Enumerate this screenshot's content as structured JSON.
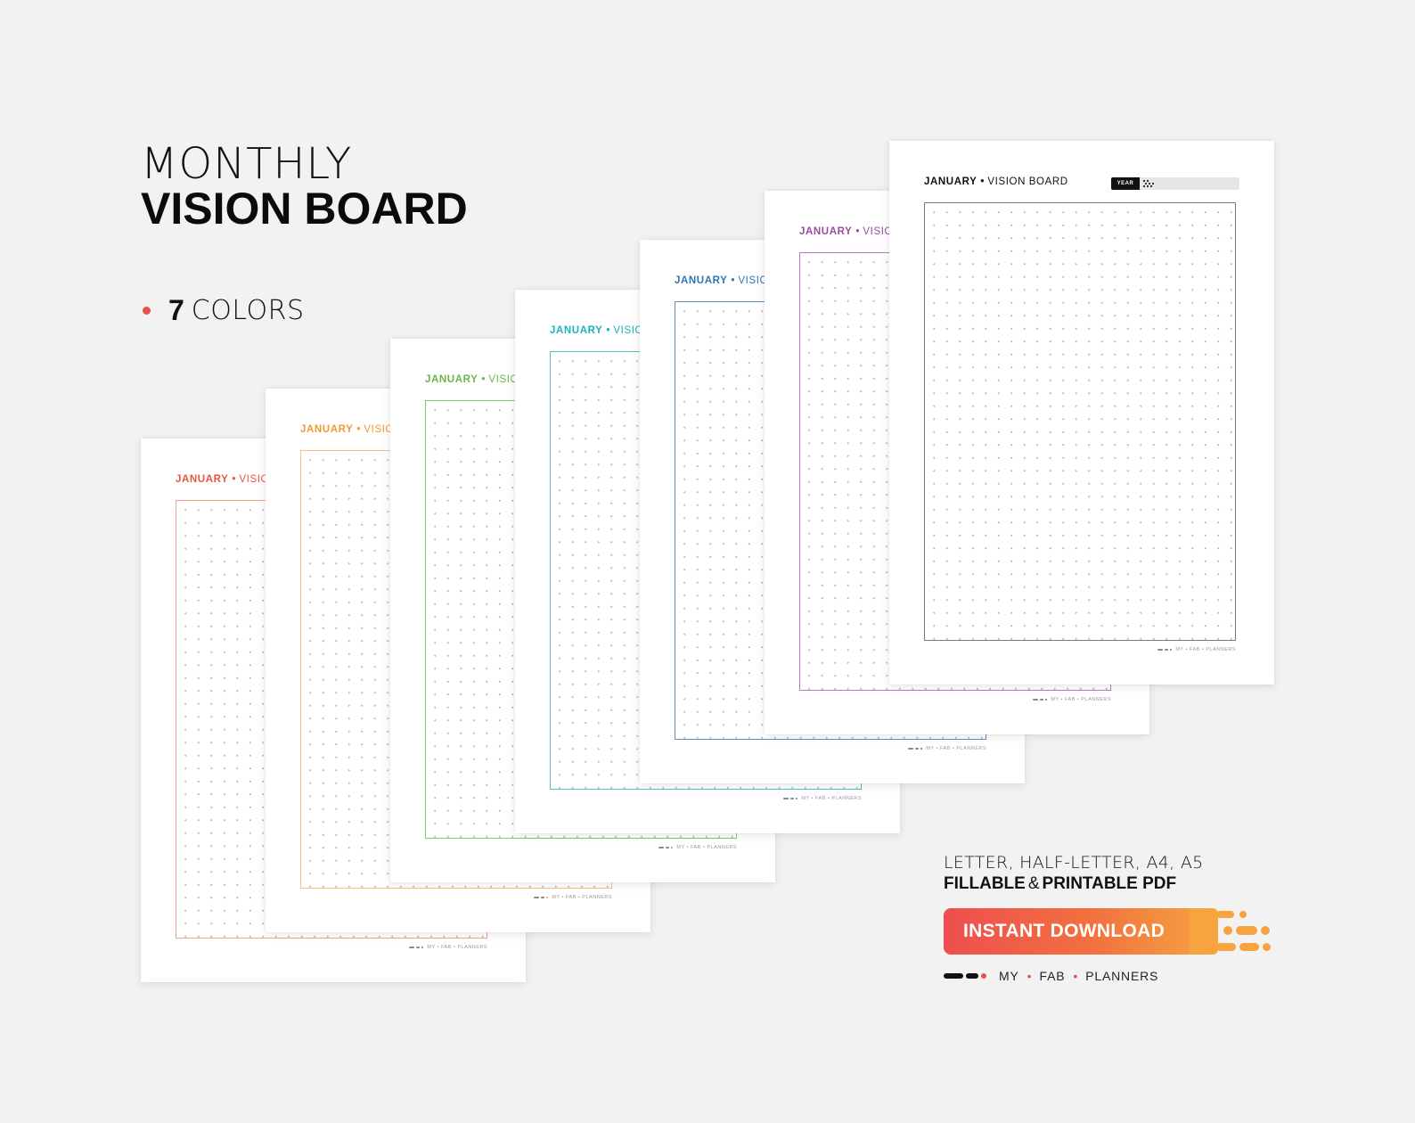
{
  "heading": {
    "line1": "MONTHLY",
    "line2": "VISION BOARD"
  },
  "colors_feature": {
    "count": "7",
    "label": "COLORS",
    "bullet_color": "#e9514c"
  },
  "pages": [
    {
      "month": "JANUARY",
      "sep": "•",
      "label": "VISION",
      "color": "#e8553f",
      "frame_color": "#f0a48a",
      "footer": "MY • FAB • PLANNERS"
    },
    {
      "month": "JANUARY",
      "sep": "•",
      "label": "VISION",
      "color": "#f29a2e",
      "frame_color": "#f5c07a",
      "footer": "MY • FAB • PLANNERS"
    },
    {
      "month": "JANUARY",
      "sep": "•",
      "label": "VISION",
      "color": "#6bb548",
      "frame_color": "#86c56a",
      "footer": "MY • FAB • PLANNERS"
    },
    {
      "month": "JANUARY",
      "sep": "•",
      "label": "VISION",
      "color": "#1fb0b8",
      "frame_color": "#4fc0c6",
      "footer": "MY • FAB • PLANNERS"
    },
    {
      "month": "JANUARY",
      "sep": "•",
      "label": "VISION",
      "color": "#2e75b6",
      "frame_color": "#5a92c8",
      "footer": "MY • FAB • PLANNERS"
    },
    {
      "month": "JANUARY",
      "sep": "•",
      "label": "VISION",
      "color": "#9c4aa6",
      "frame_color": "#b57abd",
      "footer": "MY • FAB • PLANNERS"
    },
    {
      "month": "JANUARY",
      "sep": "•",
      "label": "VISION BOARD",
      "color": "#111111",
      "frame_color": "#777777",
      "footer": "MY • FAB • PLANNERS",
      "year_label": "YEAR"
    }
  ],
  "info": {
    "sizes": "LETTER, HALF-LETTER, A4, A5",
    "fillable": "FILLABLE",
    "amp": "&",
    "printable": "PRINTABLE PDF"
  },
  "download_button": {
    "label": "INSTANT DOWNLOAD"
  },
  "brand": {
    "words": [
      "MY",
      "FAB",
      "PLANNERS"
    ],
    "sep": "•",
    "accent": "#e9514c"
  }
}
